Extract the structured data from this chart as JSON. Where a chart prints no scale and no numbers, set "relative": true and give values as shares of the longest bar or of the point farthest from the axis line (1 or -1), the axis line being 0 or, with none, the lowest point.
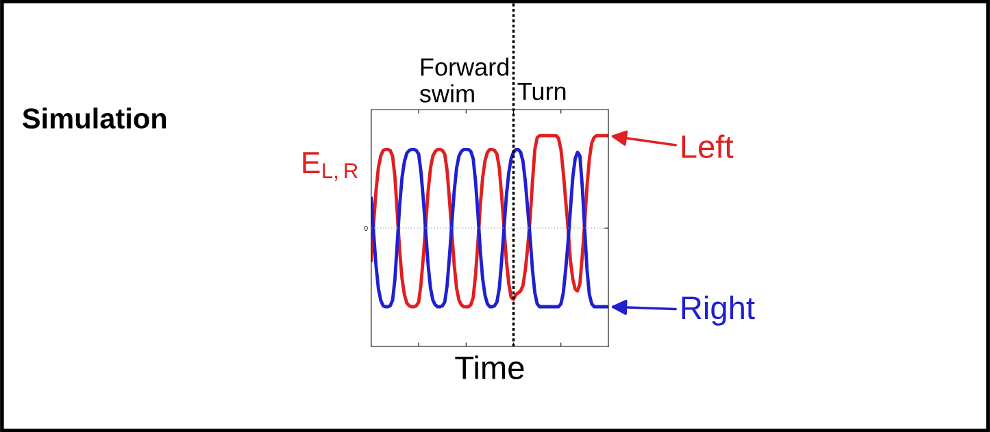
{
  "chart_data": {
    "type": "line",
    "title": "Simulation",
    "xlabel": "Time",
    "ylabel": "E$_{L,R}$",
    "relative": true,
    "categories": [
      null,
      null,
      null,
      null,
      null,
      null,
      null,
      null,
      null,
      null,
      null,
      null,
      null,
      null,
      null,
      null,
      null,
      null,
      null,
      null,
      null,
      null,
      null,
      null,
      null,
      null,
      null,
      null,
      null,
      null,
      null,
      null,
      null,
      null,
      null,
      null,
      null,
      null,
      null,
      null,
      null,
      null,
      null,
      null,
      null,
      null,
      null,
      null,
      null,
      null,
      null,
      null,
      null,
      null,
      null,
      null,
      null,
      null,
      null,
      null,
      null,
      null,
      null,
      null,
      null,
      null,
      null,
      null,
      null,
      null,
      null,
      null,
      null,
      null,
      null,
      null,
      null,
      null,
      null,
      null,
      null,
      null,
      null,
      null,
      null,
      null,
      null,
      null,
      null,
      null,
      null,
      null,
      null,
      null,
      null,
      null,
      null,
      null,
      null,
      null,
      null
    ],
    "series": [
      {
        "name": "Left",
        "color": "#e02020",
        "values": [
          -0.35,
          0.05,
          0.4,
          0.65,
          0.78,
          0.84,
          0.85,
          0.85,
          0.84,
          0.78,
          0.55,
          0.15,
          -0.25,
          -0.55,
          -0.72,
          -0.81,
          -0.84,
          -0.85,
          -0.85,
          -0.84,
          -0.8,
          -0.6,
          -0.3,
          0.05,
          0.4,
          0.65,
          0.78,
          0.83,
          0.85,
          0.85,
          0.84,
          0.8,
          0.62,
          0.3,
          -0.05,
          -0.4,
          -0.65,
          -0.78,
          -0.83,
          -0.85,
          -0.85,
          -0.85,
          -0.83,
          -0.75,
          -0.5,
          -0.15,
          0.25,
          0.55,
          0.73,
          0.82,
          0.85,
          0.85,
          0.84,
          0.8,
          0.65,
          0.35,
          0.0,
          -0.35,
          -0.6,
          -0.75,
          -0.77,
          -0.72,
          -0.7,
          -0.68,
          -0.62,
          -0.45,
          -0.2,
          0.1,
          0.5,
          0.85,
          0.98,
          1.0,
          1.0,
          1.0,
          1.0,
          1.0,
          1.0,
          1.0,
          1.0,
          0.97,
          0.85,
          0.6,
          0.3,
          0.0,
          -0.35,
          -0.55,
          -0.66,
          -0.68,
          -0.6,
          -0.3,
          0.05,
          0.45,
          0.75,
          0.92,
          0.98,
          1.0,
          1.0,
          1.0,
          1.0,
          1.0,
          1.0
        ]
      },
      {
        "name": "Right",
        "color": "#2020d0",
        "values": [
          0.32,
          -0.05,
          -0.4,
          -0.65,
          -0.78,
          -0.84,
          -0.85,
          -0.85,
          -0.84,
          -0.78,
          -0.55,
          -0.15,
          0.25,
          0.55,
          0.72,
          0.81,
          0.84,
          0.85,
          0.85,
          0.84,
          0.8,
          0.6,
          0.3,
          -0.05,
          -0.4,
          -0.65,
          -0.78,
          -0.83,
          -0.85,
          -0.85,
          -0.84,
          -0.8,
          -0.62,
          -0.3,
          0.05,
          0.4,
          0.65,
          0.78,
          0.83,
          0.85,
          0.85,
          0.85,
          0.83,
          0.75,
          0.5,
          0.15,
          -0.25,
          -0.55,
          -0.73,
          -0.82,
          -0.85,
          -0.85,
          -0.84,
          -0.8,
          -0.65,
          -0.35,
          0.0,
          0.35,
          0.6,
          0.75,
          0.82,
          0.85,
          0.85,
          0.82,
          0.72,
          0.5,
          0.2,
          -0.1,
          -0.45,
          -0.7,
          -0.82,
          -0.85,
          -0.85,
          -0.85,
          -0.85,
          -0.85,
          -0.85,
          -0.85,
          -0.85,
          -0.85,
          -0.82,
          -0.7,
          -0.45,
          -0.15,
          0.2,
          0.55,
          0.75,
          0.82,
          0.78,
          0.45,
          0.0,
          -0.45,
          -0.72,
          -0.82,
          -0.85,
          -0.85,
          -0.85,
          -0.85,
          -0.85,
          -0.85,
          -0.85
        ]
      }
    ],
    "ref_lines": [
      {
        "axis": "y",
        "value": 0,
        "label": "0",
        "color": "#aaaaaa",
        "line_style": "dotted"
      }
    ],
    "annotations": [
      "Forward swim",
      "Turn"
    ],
    "grid": false,
    "legend": "right",
    "marker": "none",
    "line_style": "solid"
  }
}
